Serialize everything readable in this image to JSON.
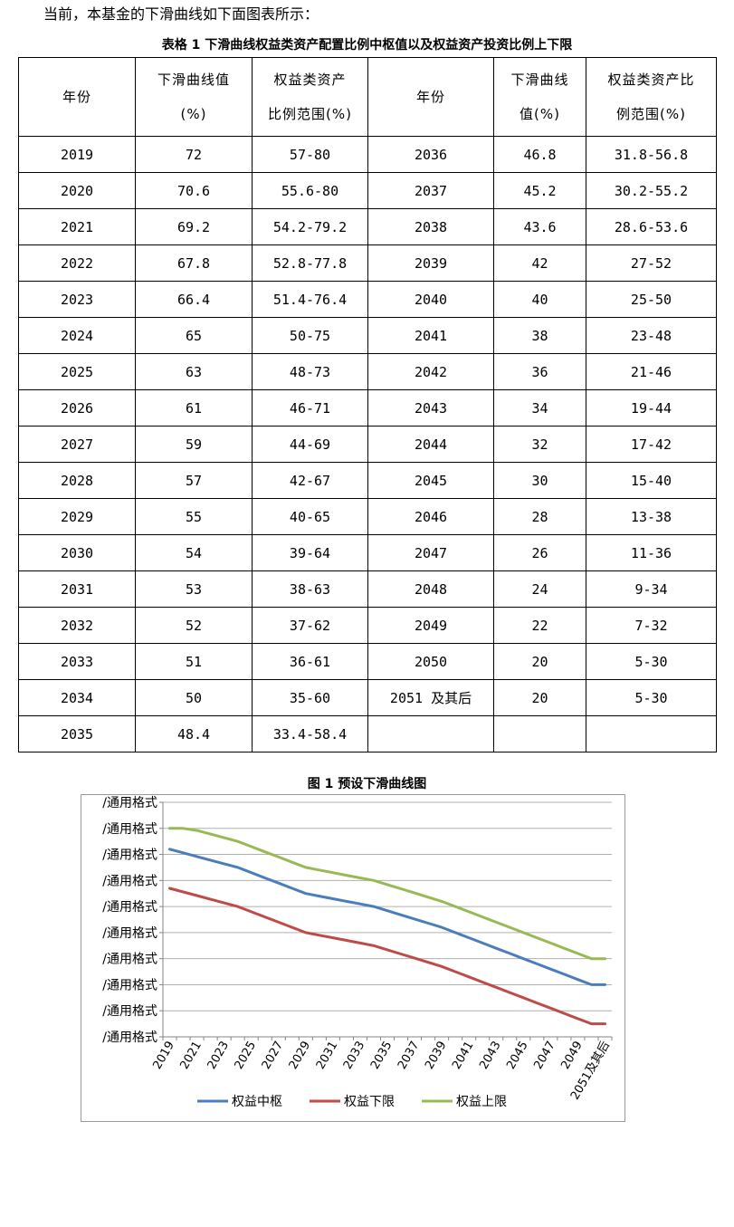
{
  "intro_text": "当前，本基金的下滑曲线如下面图表所示：",
  "table_caption": "表格 1 下滑曲线权益类资产配置比例中枢值以及权益资产投资比例上下限",
  "table": {
    "headers": {
      "year": "年份",
      "glide_a": "下滑曲线值",
      "glide_b": "(%)",
      "range_a": "权益类资产",
      "range_b": "比例范围(%)",
      "year2": "年份",
      "glide2_a": "下滑曲线",
      "glide2_b": "值(%)",
      "range2_a": "权益类资产比",
      "range2_b": "例范围(%)"
    },
    "rows": [
      [
        "2019",
        "72",
        "57-80",
        "2036",
        "46.8",
        "31.8-56.8"
      ],
      [
        "2020",
        "70.6",
        "55.6-80",
        "2037",
        "45.2",
        "30.2-55.2"
      ],
      [
        "2021",
        "69.2",
        "54.2-79.2",
        "2038",
        "43.6",
        "28.6-53.6"
      ],
      [
        "2022",
        "67.8",
        "52.8-77.8",
        "2039",
        "42",
        "27-52"
      ],
      [
        "2023",
        "66.4",
        "51.4-76.4",
        "2040",
        "40",
        "25-50"
      ],
      [
        "2024",
        "65",
        "50-75",
        "2041",
        "38",
        "23-48"
      ],
      [
        "2025",
        "63",
        "48-73",
        "2042",
        "36",
        "21-46"
      ],
      [
        "2026",
        "61",
        "46-71",
        "2043",
        "34",
        "19-44"
      ],
      [
        "2027",
        "59",
        "44-69",
        "2044",
        "32",
        "17-42"
      ],
      [
        "2028",
        "57",
        "42-67",
        "2045",
        "30",
        "15-40"
      ],
      [
        "2029",
        "55",
        "40-65",
        "2046",
        "28",
        "13-38"
      ],
      [
        "2030",
        "54",
        "39-64",
        "2047",
        "26",
        "11-36"
      ],
      [
        "2031",
        "53",
        "38-63",
        "2048",
        "24",
        "9-34"
      ],
      [
        "2032",
        "52",
        "37-62",
        "2049",
        "22",
        "7-32"
      ],
      [
        "2033",
        "51",
        "36-61",
        "2050",
        "20",
        "5-30"
      ],
      [
        "2034",
        "50",
        "35-60",
        "2051 及其后",
        "20",
        "5-30"
      ],
      [
        "2035",
        "48.4",
        "33.4-58.4",
        "",
        "",
        ""
      ]
    ]
  },
  "figure_caption": "图 1 预设下滑曲线图",
  "chart_data": {
    "type": "line",
    "title": "",
    "xlabel": "",
    "ylabel": "",
    "ylim": [
      0,
      90
    ],
    "y_tick_labels": [
      "/通用格式",
      "/通用格式",
      "/通用格式",
      "/通用格式",
      "/通用格式",
      "/通用格式",
      "/通用格式",
      "/通用格式",
      "/通用格式",
      "/通用格式"
    ],
    "grid": true,
    "legend_position": "bottom",
    "x": [
      "2019",
      "2020",
      "2021",
      "2022",
      "2023",
      "2024",
      "2025",
      "2026",
      "2027",
      "2028",
      "2029",
      "2030",
      "2031",
      "2032",
      "2033",
      "2034",
      "2035",
      "2036",
      "2037",
      "2038",
      "2039",
      "2040",
      "2041",
      "2042",
      "2043",
      "2044",
      "2045",
      "2046",
      "2047",
      "2048",
      "2049",
      "2050",
      "2051及其后"
    ],
    "x_tick_labels": [
      "2019",
      "2021",
      "2023",
      "2025",
      "2027",
      "2029",
      "2031",
      "2033",
      "2035",
      "2037",
      "2039",
      "2041",
      "2043",
      "2045",
      "2047",
      "2049",
      "2051及其后"
    ],
    "series": [
      {
        "name": "权益中枢",
        "color": "#4a7ebb",
        "values": [
          72,
          70.6,
          69.2,
          67.8,
          66.4,
          65,
          63,
          61,
          59,
          57,
          55,
          54,
          53,
          52,
          51,
          50,
          48.4,
          46.8,
          45.2,
          43.6,
          42,
          40,
          38,
          36,
          34,
          32,
          30,
          28,
          26,
          24,
          22,
          20,
          20
        ]
      },
      {
        "name": "权益下限",
        "color": "#be4b48",
        "values": [
          57,
          55.6,
          54.2,
          52.8,
          51.4,
          50,
          48,
          46,
          44,
          42,
          40,
          39,
          38,
          37,
          36,
          35,
          33.4,
          31.8,
          30.2,
          28.6,
          27,
          25,
          23,
          21,
          19,
          17,
          15,
          13,
          11,
          9,
          7,
          5,
          5
        ]
      },
      {
        "name": "权益上限",
        "color": "#98b954",
        "values": [
          80,
          80,
          79.2,
          77.8,
          76.4,
          75,
          73,
          71,
          69,
          67,
          65,
          64,
          63,
          62,
          61,
          60,
          58.4,
          56.8,
          55.2,
          53.6,
          52,
          50,
          48,
          46,
          44,
          42,
          40,
          38,
          36,
          34,
          32,
          30,
          30
        ]
      }
    ]
  }
}
